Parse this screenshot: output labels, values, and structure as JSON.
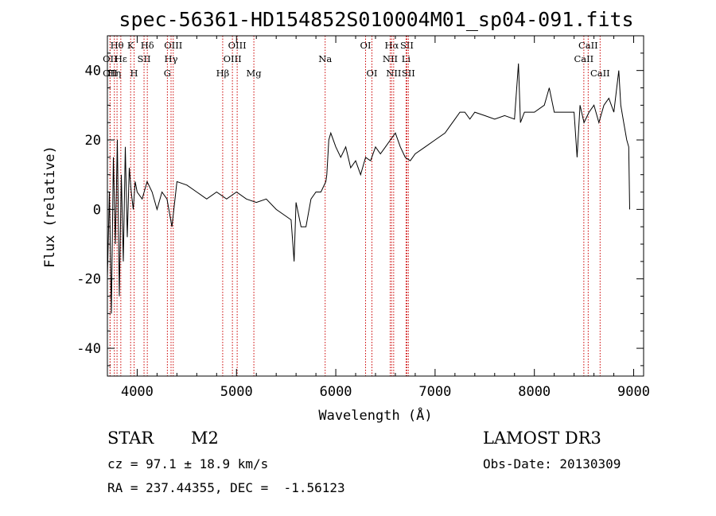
{
  "chart_data": {
    "type": "line",
    "title": "spec-56361-HD154852S010004M01_sp04-091.fits",
    "xlabel": "Wavelength (Å)",
    "ylabel": "Flux (relative)",
    "xlim": [
      3700,
      9100
    ],
    "ylim": [
      -48,
      50
    ],
    "xticks": [
      4000,
      5000,
      6000,
      7000,
      8000,
      9000
    ],
    "yticks": [
      -40,
      -20,
      0,
      20,
      40
    ],
    "series": [
      {
        "name": "spectrum",
        "x": [
          3700,
          3720,
          3740,
          3760,
          3780,
          3800,
          3820,
          3840,
          3860,
          3880,
          3900,
          3920,
          3940,
          3960,
          3980,
          4000,
          4050,
          4100,
          4150,
          4200,
          4250,
          4300,
          4350,
          4400,
          4500,
          4600,
          4700,
          4800,
          4900,
          5000,
          5100,
          5200,
          5300,
          5400,
          5500,
          5550,
          5580,
          5600,
          5650,
          5700,
          5750,
          5800,
          5850,
          5900,
          5910,
          5930,
          5950,
          6000,
          6050,
          6100,
          6150,
          6200,
          6250,
          6300,
          6350,
          6400,
          6450,
          6500,
          6550,
          6600,
          6650,
          6700,
          6750,
          6800,
          6900,
          7000,
          7100,
          7150,
          7200,
          7250,
          7300,
          7350,
          7400,
          7500,
          7600,
          7700,
          7800,
          7840,
          7860,
          7900,
          8000,
          8100,
          8150,
          8200,
          8300,
          8400,
          8430,
          8440,
          8460,
          8500,
          8550,
          8600,
          8650,
          8700,
          8750,
          8800,
          8850,
          8870,
          8900,
          8930,
          8950,
          8960
        ],
        "y": [
          -20,
          5,
          -30,
          15,
          -10,
          20,
          -25,
          10,
          -15,
          18,
          -8,
          12,
          5,
          0,
          8,
          5,
          3,
          8,
          5,
          0,
          5,
          3,
          -5,
          8,
          7,
          5,
          3,
          5,
          3,
          5,
          3,
          2,
          3,
          0,
          -2,
          -3,
          -15,
          2,
          -5,
          -5,
          3,
          5,
          5,
          8,
          10,
          20,
          22,
          18,
          15,
          18,
          12,
          14,
          10,
          15,
          14,
          18,
          16,
          18,
          20,
          22,
          18,
          15,
          14,
          16,
          18,
          20,
          22,
          24,
          26,
          28,
          28,
          26,
          28,
          27,
          26,
          27,
          26,
          42,
          25,
          28,
          28,
          30,
          35,
          28,
          28,
          28,
          15,
          20,
          30,
          25,
          28,
          30,
          25,
          30,
          32,
          28,
          40,
          30,
          25,
          20,
          18,
          0
        ]
      }
    ],
    "line_markers": [
      {
        "label": "Hθ",
        "x": 3797,
        "row": 1
      },
      {
        "label": "OII",
        "x": 3727,
        "row": 2
      },
      {
        "label": "OII",
        "x": 3727,
        "row": 3
      },
      {
        "label": "Hε",
        "x": 3835,
        "row": 2
      },
      {
        "label": "Hη",
        "x": 3770,
        "row": 3
      },
      {
        "label": "K",
        "x": 3934,
        "row": 1
      },
      {
        "label": "H",
        "x": 3969,
        "row": 3
      },
      {
        "label": "SII",
        "x": 4069,
        "row": 2
      },
      {
        "label": "Hδ",
        "x": 4102,
        "row": 1
      },
      {
        "label": "OIII",
        "x": 4363,
        "row": 1
      },
      {
        "label": "Hγ",
        "x": 4341,
        "row": 2
      },
      {
        "label": "G",
        "x": 4304,
        "row": 3
      },
      {
        "label": "Hβ",
        "x": 4861,
        "row": 3
      },
      {
        "label": "OIII",
        "x": 5007,
        "row": 1
      },
      {
        "label": "OIII",
        "x": 4959,
        "row": 2
      },
      {
        "label": "Mg",
        "x": 5175,
        "row": 3
      },
      {
        "label": "Na",
        "x": 5893,
        "row": 2
      },
      {
        "label": "OI",
        "x": 6300,
        "row": 1
      },
      {
        "label": "OI",
        "x": 6364,
        "row": 3
      },
      {
        "label": "Hα",
        "x": 6563,
        "row": 1
      },
      {
        "label": "NII",
        "x": 6548,
        "row": 2
      },
      {
        "label": "NII",
        "x": 6583,
        "row": 3
      },
      {
        "label": "SII",
        "x": 6716,
        "row": 1
      },
      {
        "label": "Li",
        "x": 6708,
        "row": 2
      },
      {
        "label": "SII",
        "x": 6731,
        "row": 3
      },
      {
        "label": "CaII",
        "x": 8542,
        "row": 1
      },
      {
        "label": "CaII",
        "x": 8498,
        "row": 2
      },
      {
        "label": "CaII",
        "x": 8662,
        "row": 3
      }
    ]
  },
  "info": {
    "class_label": "STAR",
    "subclass_label": "M2",
    "survey": "LAMOST DR3",
    "cz": "cz = 97.1 ± 18.9 km/s",
    "obs_date": "Obs-Date: 20130309",
    "coords": "RA = 237.44355, DEC =  -1.56123"
  }
}
